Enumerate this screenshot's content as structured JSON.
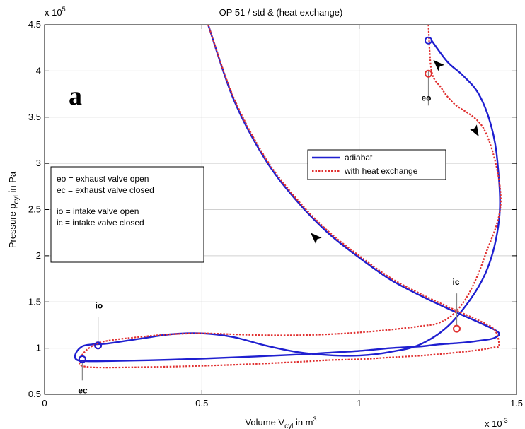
{
  "chart_data": {
    "type": "line",
    "title": "OP 51 / std & (heat exchange)",
    "xlabel": {
      "main": "Volume  V",
      "sub": "cyl",
      "tail": "  in  m",
      "sup": "3"
    },
    "ylabel": {
      "main": "Pressure  p",
      "sub": "cyl",
      "tail": "  in  Pa"
    },
    "panel_label": "a",
    "x_multiplier": {
      "base": "x 10",
      "exp": "-3"
    },
    "y_multiplier": {
      "base": "x 10",
      "exp": "5"
    },
    "xlim": [
      0,
      1.5
    ],
    "ylim": [
      0.5,
      4.5
    ],
    "xticks": [
      0,
      0.5,
      1,
      1.5
    ],
    "xtick_labels": [
      "0",
      "0.5",
      "1",
      "1.5"
    ],
    "yticks": [
      0.5,
      1,
      1.5,
      2,
      2.5,
      3,
      3.5,
      4,
      4.5
    ],
    "ytick_labels": [
      "0.5",
      "1",
      "1.5",
      "2",
      "2.5",
      "3",
      "3.5",
      "4",
      "4.5"
    ],
    "grid": true,
    "legend": {
      "placement": "center-right",
      "entries": [
        {
          "name": "adiabat",
          "color": "#1f1fd0",
          "style": "solid"
        },
        {
          "name": "with heat exchange",
          "color": "#e03030",
          "style": "dotted"
        }
      ]
    },
    "notes": [
      "eo = exhaust valve open",
      "ec = exhaust valve closed",
      "",
      "io = intake valve open",
      "ic = intake valve closed"
    ],
    "series": [
      {
        "name": "adiabat",
        "color": "#1f1fd0",
        "style": "solid",
        "x": [
          0.52,
          0.6,
          0.7,
          0.8,
          0.9,
          1.0,
          1.1,
          1.2,
          1.3,
          1.38,
          1.43,
          1.445,
          1.44,
          1.42,
          1.38,
          1.33,
          1.25,
          1.2,
          1.1,
          1.0,
          0.9,
          0.8,
          0.6,
          0.4,
          0.2,
          0.13,
          0.1,
          0.1,
          0.12,
          0.15,
          0.2,
          0.3,
          0.4,
          0.5,
          0.6,
          0.7,
          0.8,
          0.9,
          1.0,
          1.1,
          1.2,
          1.3,
          1.4,
          1.445,
          1.44,
          1.42,
          1.38,
          1.33,
          1.28,
          1.23
        ],
        "y": [
          4.5,
          3.7,
          3.05,
          2.6,
          2.25,
          1.98,
          1.74,
          1.56,
          1.4,
          1.28,
          1.2,
          1.16,
          1.13,
          1.1,
          1.08,
          1.06,
          1.04,
          1.02,
          1.0,
          0.97,
          0.95,
          0.93,
          0.9,
          0.875,
          0.86,
          0.86,
          0.88,
          0.95,
          1.02,
          1.04,
          1.05,
          1.1,
          1.15,
          1.16,
          1.12,
          1.03,
          0.96,
          0.925,
          0.92,
          0.96,
          1.05,
          1.3,
          1.8,
          2.4,
          3.0,
          3.4,
          3.75,
          3.95,
          4.1,
          4.33
        ]
      },
      {
        "name": "with heat exchange",
        "color": "#e03030",
        "style": "dotted",
        "x": [
          0.52,
          0.6,
          0.7,
          0.8,
          0.9,
          1.0,
          1.1,
          1.2,
          1.3,
          1.38,
          1.43,
          1.445,
          1.43,
          1.38,
          1.3,
          1.2,
          1.1,
          1.0,
          0.9,
          0.8,
          0.6,
          0.4,
          0.2,
          0.13,
          0.11,
          0.12,
          0.15,
          0.2,
          0.3,
          0.4,
          0.5,
          0.6,
          0.7,
          0.8,
          0.9,
          1.0,
          1.1,
          1.2,
          1.25,
          1.3,
          1.35,
          1.4,
          1.45,
          1.4,
          1.3,
          1.26,
          1.23,
          1.22
        ],
        "y": [
          4.5,
          3.72,
          3.07,
          2.62,
          2.27,
          2.0,
          1.76,
          1.58,
          1.42,
          1.3,
          1.2,
          1.03,
          1.01,
          0.98,
          0.95,
          0.92,
          0.9,
          0.88,
          0.87,
          0.85,
          0.82,
          0.8,
          0.79,
          0.8,
          0.84,
          0.93,
          1.02,
          1.08,
          1.12,
          1.15,
          1.16,
          1.15,
          1.14,
          1.14,
          1.15,
          1.17,
          1.2,
          1.24,
          1.27,
          1.37,
          1.6,
          2.0,
          2.6,
          3.35,
          3.65,
          3.82,
          4.0,
          4.5
        ]
      }
    ],
    "markers": [
      {
        "label": "eo",
        "x": 1.22,
        "y": 3.97,
        "color": "#e03030"
      },
      {
        "label": "",
        "x": 1.22,
        "y": 4.33,
        "color": "#1f1fd0"
      },
      {
        "label": "ic",
        "x": 1.31,
        "y": 1.21,
        "color": "#e03030"
      },
      {
        "label": "io",
        "x": 0.17,
        "y": 1.03,
        "color": "#e03030"
      },
      {
        "label": "",
        "x": 0.17,
        "y": 1.03,
        "color": "#1f1fd0"
      },
      {
        "label": "ec",
        "x": 0.12,
        "y": 0.88,
        "color": "#e03030"
      },
      {
        "label": "",
        "x": 0.12,
        "y": 0.88,
        "color": "#1f1fd0"
      }
    ],
    "arrows": [
      {
        "x": 1.25,
        "y": 4.07,
        "dir": "up-left"
      },
      {
        "x": 1.37,
        "y": 3.35,
        "dir": "down-right"
      },
      {
        "x": 0.86,
        "y": 2.2,
        "dir": "up-left"
      }
    ]
  }
}
